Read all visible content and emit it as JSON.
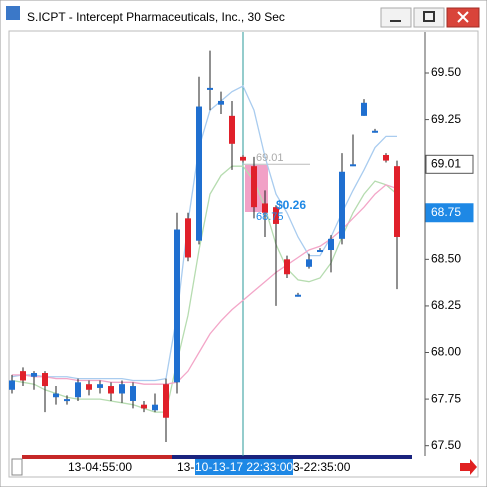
{
  "window_title": "S.ICPT - Intercept Pharmaceuticals, Inc., 30 Sec",
  "chart_data": {
    "type": "candlestick",
    "up_color": "#1f6fd0",
    "down_color": "#e0202a",
    "open": [
      67.8,
      67.9,
      67.87,
      67.89,
      67.76,
      67.75,
      67.76,
      67.83,
      67.81,
      67.82,
      67.78,
      67.74,
      67.72,
      67.69,
      67.83,
      67.84,
      68.72,
      68.6,
      69.42,
      69.33,
      69.27,
      69.05,
      69.0,
      68.8,
      68.78,
      68.5,
      68.31,
      68.46,
      68.55,
      68.55,
      68.61,
      69.01,
      69.27,
      69.19,
      69.06,
      69.0
    ],
    "high": [
      67.88,
      67.92,
      67.9,
      67.9,
      67.82,
      67.77,
      67.86,
      67.85,
      67.85,
      67.84,
      67.85,
      67.84,
      67.74,
      67.78,
      67.86,
      68.75,
      68.75,
      69.48,
      69.62,
      69.4,
      69.35,
      69.06,
      69.05,
      68.87,
      68.79,
      68.52,
      68.32,
      68.53,
      68.56,
      68.63,
      69.07,
      69.17,
      69.36,
      69.2,
      69.07,
      69.03
    ],
    "low": [
      67.78,
      67.82,
      67.8,
      67.68,
      67.72,
      67.72,
      67.74,
      67.77,
      67.78,
      67.74,
      67.73,
      67.7,
      67.68,
      67.68,
      67.52,
      67.78,
      68.49,
      68.58,
      69.3,
      69.28,
      68.98,
      69.02,
      68.72,
      68.62,
      68.25,
      68.4,
      68.3,
      68.45,
      68.54,
      68.43,
      68.58,
      69.0,
      69.27,
      69.18,
      69.02,
      68.34
    ],
    "close": [
      67.85,
      67.85,
      67.89,
      67.82,
      67.78,
      67.75,
      67.84,
      67.8,
      67.83,
      67.78,
      67.83,
      67.82,
      67.7,
      67.72,
      67.65,
      68.66,
      68.51,
      69.32,
      69.42,
      69.35,
      69.12,
      69.03,
      68.78,
      68.75,
      68.69,
      68.42,
      68.31,
      68.5,
      68.55,
      68.61,
      68.97,
      69.01,
      69.34,
      69.19,
      69.03,
      68.62
    ],
    "series": [
      {
        "color": "#a9ccef",
        "values": [
          67.87,
          67.88,
          67.88,
          67.87,
          67.87,
          67.87,
          67.86,
          67.86,
          67.86,
          67.86,
          67.86,
          67.85,
          67.85,
          67.85,
          67.86,
          68.2,
          68.7,
          69.1,
          69.3,
          69.35,
          69.4,
          69.43,
          69.3,
          69.05,
          68.85,
          68.75,
          68.62,
          68.52,
          68.52,
          68.62,
          68.75,
          68.87,
          68.98,
          69.1,
          69.16,
          69.16
        ]
      },
      {
        "color": "#b6dcb0",
        "values": [
          67.85,
          67.84,
          67.83,
          67.8,
          67.78,
          67.76,
          67.75,
          67.75,
          67.75,
          67.74,
          67.73,
          67.72,
          67.7,
          67.68,
          67.68,
          67.95,
          68.2,
          68.55,
          68.85,
          68.95,
          69.0,
          69.0,
          68.92,
          68.78,
          68.58,
          68.45,
          68.39,
          68.38,
          68.4,
          68.48,
          68.62,
          68.75,
          68.85,
          68.92,
          68.9,
          68.85
        ]
      },
      {
        "color": "#f3a6c8",
        "values": [
          67.88,
          67.88,
          67.87,
          67.87,
          67.86,
          67.86,
          67.85,
          67.85,
          67.85,
          67.84,
          67.84,
          67.84,
          67.83,
          67.83,
          67.83,
          67.84,
          67.9,
          68.0,
          68.1,
          68.17,
          68.23,
          68.28,
          68.33,
          68.38,
          68.43,
          68.47,
          68.51,
          68.55,
          68.57,
          68.61,
          68.66,
          68.72,
          68.78,
          68.85,
          68.9,
          68.88
        ]
      }
    ],
    "ylim": [
      67.45,
      69.72
    ],
    "yticks": [
      {
        "value": 69.5,
        "label": "69.50"
      },
      {
        "value": 69.25,
        "label": "69.25"
      },
      {
        "value": 68.5,
        "label": "68.50"
      },
      {
        "value": 68.25,
        "label": "68.25"
      },
      {
        "value": 68,
        "label": "68.00"
      },
      {
        "value": 67.75,
        "label": "67.75"
      },
      {
        "value": 67.5,
        "label": "67.50"
      }
    ],
    "price_markers": [
      {
        "value": 69.01,
        "label": "69.01"
      },
      {
        "value": 68.75,
        "label": "68.75"
      }
    ],
    "annotations": [
      "69.01",
      "$0.26",
      "68.75"
    ],
    "x_labels": [
      "13-04:55:00",
      "13-",
      "10-13-17 22:33:00",
      "3-22:35:00"
    ]
  }
}
